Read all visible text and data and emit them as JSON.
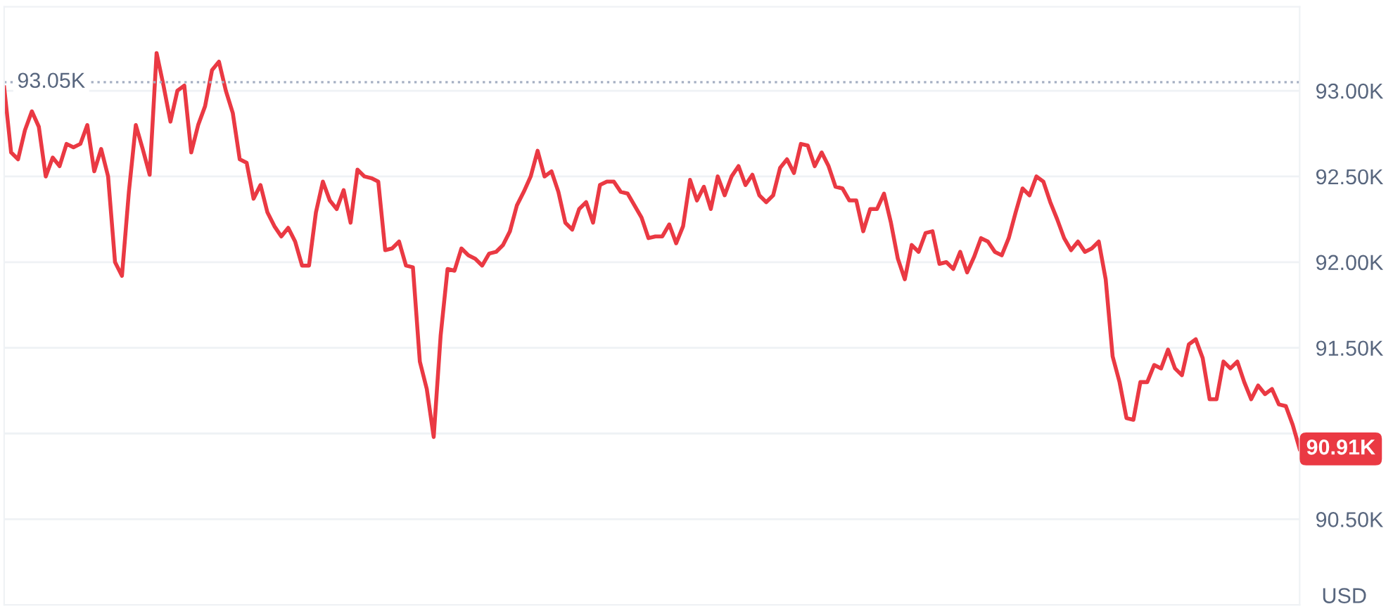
{
  "chart_data": {
    "type": "line",
    "categories": [
      null,
      null,
      null,
      null,
      null,
      null,
      null,
      null,
      null,
      null,
      null,
      null,
      null,
      null,
      null,
      null,
      null,
      null,
      null,
      null,
      null,
      null,
      null,
      null,
      null,
      null,
      null,
      null,
      null,
      null,
      null,
      null,
      null,
      null,
      null,
      null,
      null,
      null,
      null,
      null,
      null,
      null,
      null,
      null,
      null,
      null,
      null,
      null,
      null,
      null,
      null,
      null,
      null,
      null,
      null,
      null,
      null,
      null,
      null,
      null,
      null,
      null,
      null,
      null,
      null,
      null,
      null,
      null,
      null,
      null,
      null,
      null,
      null,
      null,
      null,
      null,
      null,
      null,
      null,
      null,
      null,
      null,
      null,
      null,
      null,
      null,
      null,
      null,
      null,
      null,
      null,
      null,
      null,
      null,
      null,
      null,
      null,
      null,
      null,
      null,
      null,
      null,
      null,
      null,
      null,
      null,
      null,
      null,
      null,
      null,
      null,
      null,
      null,
      null,
      null,
      null,
      null,
      null,
      null,
      null,
      null,
      null,
      null,
      null,
      null,
      null,
      null,
      null,
      null,
      null,
      null,
      null,
      null,
      null,
      null,
      null,
      null,
      null,
      null,
      null,
      null,
      null,
      null,
      null,
      null,
      null,
      null,
      null,
      null,
      null,
      null,
      null,
      null,
      null,
      null,
      null,
      null,
      null,
      null,
      null,
      null,
      null,
      null,
      null,
      null,
      null,
      null,
      null,
      null,
      null,
      null,
      null,
      null,
      null,
      null,
      null,
      null,
      null,
      null,
      null,
      null,
      null,
      null,
      null,
      null,
      null,
      null,
      null
    ],
    "series": [
      {
        "color": "#ea3943",
        "values": [
          93020,
          92640,
          92600,
          92770,
          92880,
          92790,
          92500,
          92610,
          92560,
          92690,
          92670,
          92690,
          92800,
          92530,
          92660,
          92500,
          92000,
          91920,
          92410,
          92800,
          92660,
          92510,
          93220,
          93030,
          92820,
          93000,
          93030,
          92640,
          92800,
          92910,
          93120,
          93170,
          93000,
          92870,
          92600,
          92580,
          92370,
          92450,
          92290,
          92210,
          92150,
          92200,
          92120,
          91980,
          91980,
          92290,
          92470,
          92360,
          92310,
          92420,
          92230,
          92540,
          92500,
          92490,
          92470,
          92070,
          92080,
          92120,
          91980,
          91970,
          91420,
          91260,
          90980,
          91570,
          91960,
          91950,
          92080,
          92040,
          92020,
          91980,
          92050,
          92060,
          92100,
          92180,
          92330,
          92410,
          92500,
          92650,
          92500,
          92530,
          92410,
          92230,
          92190,
          92310,
          92350,
          92230,
          92450,
          92470,
          92470,
          92410,
          92400,
          92330,
          92260,
          92140,
          92150,
          92150,
          92220,
          92110,
          92210,
          92480,
          92360,
          92440,
          92310,
          92500,
          92390,
          92500,
          92560,
          92450,
          92510,
          92390,
          92350,
          92390,
          92550,
          92600,
          92520,
          92690,
          92680,
          92560,
          92640,
          92560,
          92440,
          92430,
          92360,
          92360,
          92180,
          92310,
          92310,
          92400,
          92230,
          92020,
          91900,
          92100,
          92060,
          92170,
          92180,
          91990,
          92000,
          91960,
          92060,
          91940,
          92030,
          92140,
          92120,
          92060,
          92040,
          92140,
          92290,
          92430,
          92390,
          92500,
          92470,
          92350,
          92250,
          92140,
          92070,
          92120,
          92060,
          92080,
          92120,
          91900,
          91450,
          91300,
          91090,
          91080,
          91300,
          91300,
          91400,
          91380,
          91490,
          91380,
          91340,
          91520,
          91550,
          91440,
          91200,
          91200,
          91420,
          91380,
          91420,
          91300,
          91200,
          91280,
          91230,
          91260,
          91170,
          91160,
          91050,
          90910
        ]
      }
    ],
    "ylim": [
      90000,
      93490
    ],
    "yticks": [
      {
        "value": 90500,
        "label": "90.50K"
      },
      {
        "value": 91000,
        "label": null
      },
      {
        "value": 91500,
        "label": "91.50K"
      },
      {
        "value": 92000,
        "label": "92.00K"
      },
      {
        "value": 92500,
        "label": "92.50K"
      },
      {
        "value": 93000,
        "label": "93.00K"
      }
    ],
    "ref_lines": [
      {
        "axis": "y",
        "value": 93050,
        "label": "93.05K",
        "color": "#a6b0c3",
        "line_style": "dotted"
      }
    ],
    "annotations": [
      "90.91K",
      "USD"
    ],
    "grid": "y",
    "marker": "none",
    "line_style": "solid"
  }
}
